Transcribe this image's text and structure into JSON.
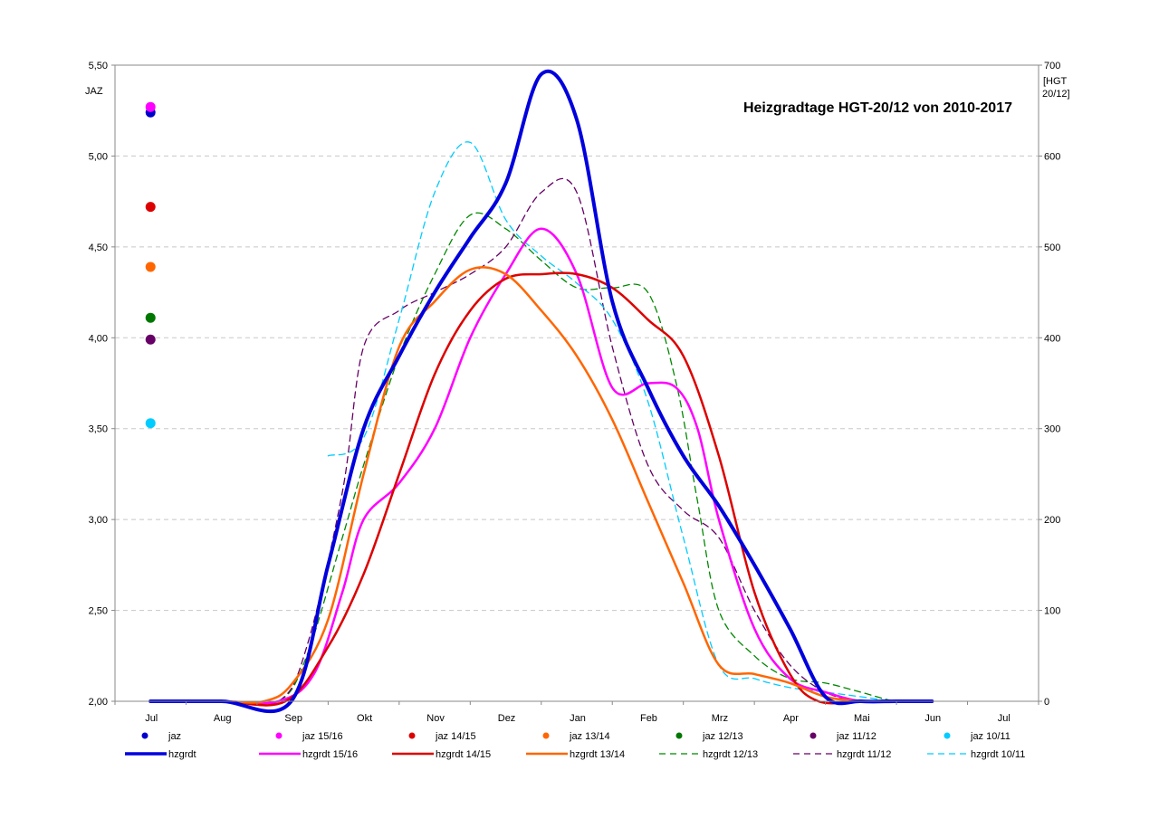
{
  "chart_data": {
    "type": "line",
    "title": "Heizgradtage HGT-20/12 von 2010-2017",
    "y_left_label": "JAZ",
    "y_right_label_lines": [
      "[HGT",
      "20/12]"
    ],
    "x_categories": [
      "Jul",
      "Aug",
      "Sep",
      "Okt",
      "Nov",
      "Dez",
      "Jan",
      "Feb",
      "Mrz",
      "Apr",
      "Mai",
      "Jun",
      "Jul"
    ],
    "y_left_ticks": [
      "2,00",
      "2,50",
      "3,00",
      "3,50",
      "4,00",
      "4,50",
      "5,00",
      "5,50"
    ],
    "y_left_range": [
      2.0,
      5.5
    ],
    "y_right_ticks": [
      "0",
      "100",
      "200",
      "300",
      "400",
      "500",
      "600",
      "700"
    ],
    "y_right_range": [
      0,
      700
    ],
    "grid": "horizontal dashed",
    "points": [
      {
        "name": "jaz",
        "value": 5.24,
        "color": "#0000cc"
      },
      {
        "name": "jaz 15/16",
        "value": 5.27,
        "color": "#ff00ff"
      },
      {
        "name": "jaz 14/15",
        "value": 4.72,
        "color": "#dd0000"
      },
      {
        "name": "jaz 13/14",
        "value": 4.39,
        "color": "#ff6600"
      },
      {
        "name": "jaz 12/13",
        "value": 4.11,
        "color": "#007700"
      },
      {
        "name": "jaz 11/12",
        "value": 3.99,
        "color": "#660066"
      },
      {
        "name": "jaz 10/11",
        "value": 3.53,
        "color": "#00ccff"
      }
    ],
    "series": [
      {
        "name": "hzgrdt",
        "color": "#0000dd",
        "width": 4,
        "dash": false,
        "x": [
          0,
          1,
          1.98,
          2.5,
          3,
          3.5,
          4,
          4.5,
          5,
          5.5,
          6,
          6.5,
          7,
          7.5,
          8,
          8.5,
          9,
          9.5,
          10,
          10.5,
          11
        ],
        "y": [
          0,
          0,
          0,
          150,
          300,
          380,
          450,
          510,
          570,
          690,
          640,
          440,
          345,
          270,
          215,
          150,
          80,
          5,
          0,
          0,
          0
        ]
      },
      {
        "name": "hzgrdt 15/16",
        "color": "#ff00ff",
        "width": 2.5,
        "dash": false,
        "x": [
          0,
          1,
          1.8,
          2.3,
          2.7,
          3,
          3.5,
          4,
          4.5,
          5,
          5.5,
          6,
          6.5,
          7,
          7.4,
          7.7,
          8,
          8.5,
          9,
          9.5,
          10,
          10.5,
          11
        ],
        "y": [
          0,
          0,
          0,
          30,
          120,
          200,
          240,
          300,
          400,
          470,
          520,
          470,
          345,
          350,
          345,
          300,
          200,
          80,
          25,
          10,
          0,
          0,
          0
        ]
      },
      {
        "name": "hzgrdt 14/15",
        "color": "#dd0000",
        "width": 2.5,
        "dash": false,
        "x": [
          0,
          1,
          1.9,
          2.5,
          3,
          3.5,
          4,
          4.5,
          5,
          5.5,
          6,
          6.5,
          7,
          7.5,
          8,
          8.5,
          9,
          9.4,
          10,
          10.5,
          11
        ],
        "y": [
          0,
          0,
          0,
          60,
          140,
          250,
          360,
          430,
          465,
          470,
          470,
          455,
          420,
          380,
          270,
          120,
          30,
          0,
          0,
          0,
          0
        ]
      },
      {
        "name": "hzgrdt 13/14",
        "color": "#ff6600",
        "width": 2.5,
        "dash": false,
        "x": [
          0,
          1,
          1.6,
          2,
          2.5,
          3,
          3.5,
          4,
          4.5,
          5,
          5.5,
          6,
          6.5,
          7,
          7.5,
          8,
          8.5,
          9,
          9.5,
          10,
          10.5,
          11
        ],
        "y": [
          0,
          0,
          0,
          20,
          90,
          250,
          390,
          440,
          475,
          470,
          430,
          380,
          310,
          220,
          130,
          40,
          30,
          20,
          5,
          0,
          0,
          0
        ]
      },
      {
        "name": "hzgrdt 12/13",
        "color": "#008800",
        "width": 1.3,
        "dash": true,
        "x": [
          0,
          1,
          1.8,
          2.2,
          2.7,
          3,
          3.5,
          4,
          4.5,
          5,
          5.5,
          6,
          6.5,
          7,
          7.4,
          7.7,
          8,
          8.5,
          9,
          9.5,
          10,
          10.5,
          11
        ],
        "y": [
          0,
          0,
          0,
          50,
          180,
          260,
          380,
          470,
          535,
          520,
          485,
          455,
          455,
          450,
          350,
          220,
          100,
          50,
          25,
          20,
          10,
          0,
          0
        ]
      },
      {
        "name": "hzgrdt 11/12",
        "color": "#660066",
        "width": 1.3,
        "dash": true,
        "x": [
          0,
          1,
          1.8,
          2.2,
          2.7,
          3,
          3.5,
          4,
          4.5,
          5,
          5.5,
          6,
          6.5,
          7,
          7.5,
          8,
          8.5,
          9,
          9.5,
          10,
          10.5,
          11
        ],
        "y": [
          0,
          0,
          0,
          60,
          230,
          390,
          430,
          450,
          470,
          500,
          560,
          560,
          390,
          260,
          210,
          180,
          100,
          40,
          10,
          0,
          0,
          0
        ]
      },
      {
        "name": "hzgrdt 10/11",
        "color": "#00ccff",
        "width": 1.3,
        "dash": true,
        "x": [
          2.5,
          3,
          3.5,
          4,
          4.5,
          5,
          5.5,
          6,
          6.5,
          7,
          7.5,
          8,
          8.5,
          9,
          9.5,
          10,
          10.5,
          11
        ],
        "y": [
          270,
          290,
          420,
          560,
          615,
          530,
          490,
          460,
          420,
          330,
          180,
          40,
          25,
          15,
          10,
          5,
          0,
          0
        ]
      }
    ]
  }
}
